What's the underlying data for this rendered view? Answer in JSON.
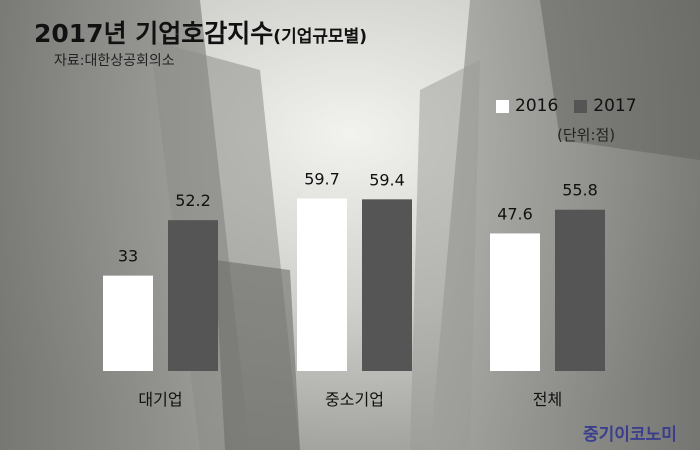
{
  "header": {
    "title": "2017년 기업호감지수",
    "title_suffix": "(기업규모별)",
    "source": "자료:대한상공회의소",
    "unit": "(단위:점)",
    "brand": "중기이코노미"
  },
  "colors": {
    "series_2016": "#ffffff",
    "series_2017": "#555555",
    "brand": "#3a3e8c"
  },
  "chart_data": {
    "type": "bar",
    "title": "2017년 기업호감지수",
    "subtitle": "(기업규모별)",
    "categories": [
      "대기업",
      "중소기업",
      "전체"
    ],
    "series": [
      {
        "name": "2016",
        "values": [
          33,
          59.7,
          47.6
        ],
        "labels": [
          "33",
          "59.7",
          "47.6"
        ]
      },
      {
        "name": "2017",
        "values": [
          52.2,
          59.4,
          55.8
        ],
        "labels": [
          "52.2",
          "59.4",
          "55.8"
        ]
      }
    ],
    "xlabel": "",
    "ylabel": "",
    "ylim": [
      0,
      60
    ],
    "legend": "top-right",
    "grid": false
  }
}
